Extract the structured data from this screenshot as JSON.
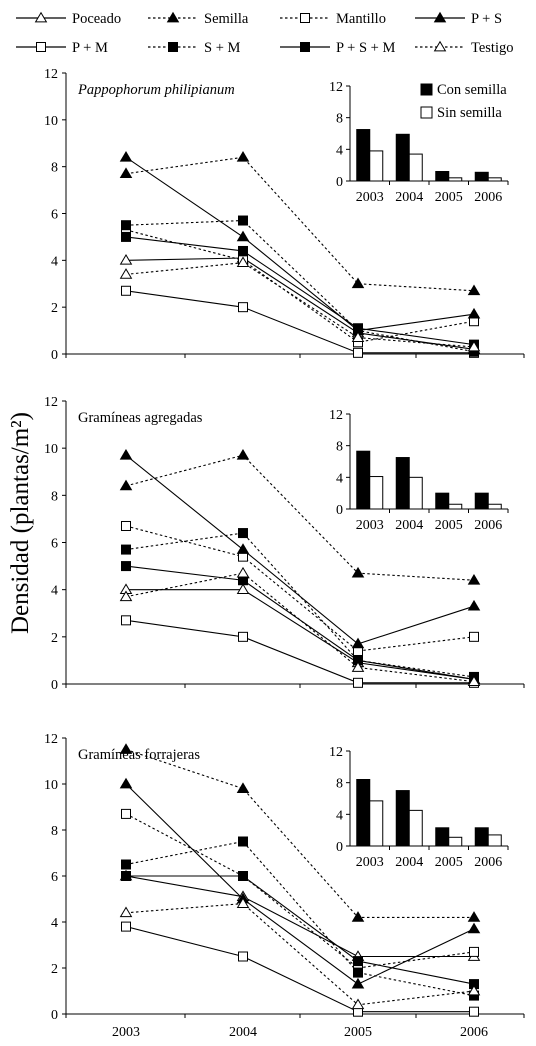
{
  "ylabel": "Densidad (plantas/m²)",
  "legend": [
    {
      "label": "Poceado",
      "marker": "triangle",
      "filled": false,
      "dash": "solid"
    },
    {
      "label": "Semilla",
      "marker": "triangle",
      "filled": true,
      "dash": "dotted"
    },
    {
      "label": "Mantillo",
      "marker": "square",
      "filled": false,
      "dash": "dotted"
    },
    {
      "label": "P + S",
      "marker": "triangle",
      "filled": true,
      "dash": "solid"
    },
    {
      "label": "P + M",
      "marker": "square",
      "filled": false,
      "dash": "solid"
    },
    {
      "label": "S + M",
      "marker": "square",
      "filled": true,
      "dash": "dotted"
    },
    {
      "label": "P + S + M",
      "marker": "square",
      "filled": true,
      "dash": "solid"
    },
    {
      "label": "Testigo",
      "marker": "triangle",
      "filled": false,
      "dash": "dotted"
    }
  ],
  "colors": {
    "line": "#000000",
    "background": "#ffffff"
  },
  "chart_data": [
    {
      "type": "line",
      "title": "Pappophorum philipianum",
      "title_italic": true,
      "x": [
        "2003",
        "2004",
        "2005",
        "2006"
      ],
      "ylim": [
        0,
        12
      ],
      "yticks": [
        "0",
        "2",
        "4",
        "6",
        "8",
        "10",
        "12"
      ],
      "series": [
        {
          "name": "Poceado",
          "values": [
            4.0,
            4.1,
            0.9,
            0.2
          ]
        },
        {
          "name": "Semilla",
          "values": [
            7.7,
            8.4,
            3.0,
            2.7
          ]
        },
        {
          "name": "Mantillo",
          "values": [
            5.3,
            4.0,
            0.5,
            1.4
          ]
        },
        {
          "name": "P + S",
          "values": [
            8.4,
            5.0,
            1.0,
            1.7
          ]
        },
        {
          "name": "P + M",
          "values": [
            2.7,
            2.0,
            0.05,
            0.05
          ]
        },
        {
          "name": "S + M",
          "values": [
            5.5,
            5.7,
            1.0,
            0.1
          ]
        },
        {
          "name": "P + S + M",
          "values": [
            5.0,
            4.4,
            1.1,
            0.4
          ]
        },
        {
          "name": "Testigo",
          "values": [
            3.4,
            3.9,
            0.7,
            0.3
          ]
        }
      ],
      "inset": {
        "type": "bar",
        "categories": [
          "2003",
          "2004",
          "2005",
          "2006"
        ],
        "ylim": [
          0,
          12
        ],
        "yticks": [
          "0",
          "4",
          "8",
          "12"
        ],
        "legend": [
          "Con semilla",
          "Sin semilla"
        ],
        "series": [
          {
            "name": "Con semilla",
            "values": [
              6.5,
              5.9,
              1.2,
              1.1
            ]
          },
          {
            "name": "Sin semilla",
            "values": [
              3.8,
              3.4,
              0.4,
              0.4
            ]
          }
        ]
      }
    },
    {
      "type": "line",
      "title": "Gramíneas agregadas",
      "title_italic": false,
      "x": [
        "2003",
        "2004",
        "2005",
        "2006"
      ],
      "ylim": [
        0,
        12
      ],
      "yticks": [
        "0",
        "2",
        "4",
        "6",
        "8",
        "10",
        "12"
      ],
      "series": [
        {
          "name": "Poceado",
          "values": [
            4.0,
            4.0,
            0.9,
            0.2
          ]
        },
        {
          "name": "Semilla",
          "values": [
            8.4,
            9.7,
            4.7,
            4.4
          ]
        },
        {
          "name": "Mantillo",
          "values": [
            6.7,
            5.4,
            1.4,
            2.0
          ]
        },
        {
          "name": "P + S",
          "values": [
            9.7,
            5.7,
            1.7,
            3.3
          ]
        },
        {
          "name": "P + M",
          "values": [
            2.7,
            2.0,
            0.05,
            0.05
          ]
        },
        {
          "name": "S + M",
          "values": [
            5.7,
            6.4,
            1.0,
            0.3
          ]
        },
        {
          "name": "P + S + M",
          "values": [
            5.0,
            4.4,
            1.0,
            0.2
          ]
        },
        {
          "name": "Testigo",
          "values": [
            3.7,
            4.7,
            0.7,
            0.1
          ]
        }
      ],
      "inset": {
        "type": "bar",
        "categories": [
          "2003",
          "2004",
          "2005",
          "2006"
        ],
        "ylim": [
          0,
          12
        ],
        "yticks": [
          "0",
          "4",
          "8",
          "12"
        ],
        "legend": [],
        "series": [
          {
            "name": "Con semilla",
            "values": [
              7.3,
              6.5,
              2.0,
              2.0
            ]
          },
          {
            "name": "Sin semilla",
            "values": [
              4.1,
              4.0,
              0.6,
              0.6
            ]
          }
        ]
      }
    },
    {
      "type": "line",
      "title": "Gramíneas forrajeras",
      "title_italic": false,
      "x": [
        "2003",
        "2004",
        "2005",
        "2006"
      ],
      "ylim": [
        0,
        12
      ],
      "yticks": [
        "0",
        "2",
        "4",
        "6",
        "8",
        "10",
        "12"
      ],
      "series": [
        {
          "name": "Poceado",
          "values": [
            6.0,
            5.1,
            2.5,
            2.5
          ]
        },
        {
          "name": "Semilla",
          "values": [
            11.5,
            9.8,
            4.2,
            4.2
          ]
        },
        {
          "name": "Mantillo",
          "values": [
            8.7,
            6.0,
            2.0,
            2.7
          ]
        },
        {
          "name": "P + S",
          "values": [
            10.0,
            5.0,
            1.3,
            3.7
          ]
        },
        {
          "name": "P + M",
          "values": [
            3.8,
            2.5,
            0.1,
            0.1
          ]
        },
        {
          "name": "S + M",
          "values": [
            6.5,
            7.5,
            1.8,
            0.8
          ]
        },
        {
          "name": "P + S + M",
          "values": [
            6.0,
            6.0,
            2.3,
            1.3
          ]
        },
        {
          "name": "Testigo",
          "values": [
            4.4,
            4.8,
            0.4,
            1.0
          ]
        }
      ],
      "inset": {
        "type": "bar",
        "categories": [
          "2003",
          "2004",
          "2005",
          "2006"
        ],
        "ylim": [
          0,
          12
        ],
        "yticks": [
          "0",
          "4",
          "8",
          "12"
        ],
        "legend": [],
        "series": [
          {
            "name": "Con semilla",
            "values": [
              8.4,
              7.0,
              2.3,
              2.3
            ]
          },
          {
            "name": "Sin semilla",
            "values": [
              5.7,
              4.5,
              1.1,
              1.4
            ]
          }
        ]
      }
    }
  ]
}
